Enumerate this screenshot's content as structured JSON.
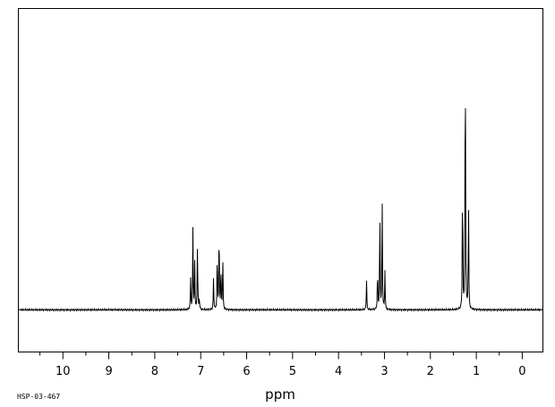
{
  "chart_data": {
    "type": "line",
    "title": "",
    "xlabel": "ppm",
    "ylabel": "",
    "sample_code": "HSP-03-467",
    "x_reversed": true,
    "xlim": [
      10.97,
      -0.45
    ],
    "ylim": [
      -0.14,
      1.0
    ],
    "grid": false,
    "legend": "none",
    "x_ticks": [
      10,
      9,
      8,
      7,
      6,
      5,
      4,
      3,
      2,
      1,
      0
    ],
    "x_tick_labels": [
      "10",
      "9",
      "8",
      "7",
      "6",
      "5",
      "4",
      "3",
      "2",
      "1",
      "0"
    ],
    "minor_tick_step": 0.5,
    "series": [
      {
        "peaks": [
          {
            "ppm": 7.22,
            "height": 0.11
          },
          {
            "ppm": 7.17,
            "height": 0.27
          },
          {
            "ppm": 7.13,
            "height": 0.16
          },
          {
            "ppm": 7.07,
            "height": 0.23
          },
          {
            "ppm": 7.03,
            "height": 0.04
          },
          {
            "ppm": 6.72,
            "height": 0.11
          },
          {
            "ppm": 6.64,
            "height": 0.19
          },
          {
            "ppm": 6.6,
            "height": 0.3
          },
          {
            "ppm": 6.56,
            "height": 0.15
          },
          {
            "ppm": 6.52,
            "height": 0.19
          },
          {
            "ppm": 3.39,
            "height": 0.1
          },
          {
            "ppm": 3.15,
            "height": 0.14
          },
          {
            "ppm": 3.1,
            "height": 0.36
          },
          {
            "ppm": 3.05,
            "height": 0.38
          },
          {
            "ppm": 2.99,
            "height": 0.13
          },
          {
            "ppm": 1.3,
            "height": 0.45
          },
          {
            "ppm": 1.24,
            "height": 1.0
          },
          {
            "ppm": 1.17,
            "height": 0.38
          }
        ]
      }
    ]
  }
}
